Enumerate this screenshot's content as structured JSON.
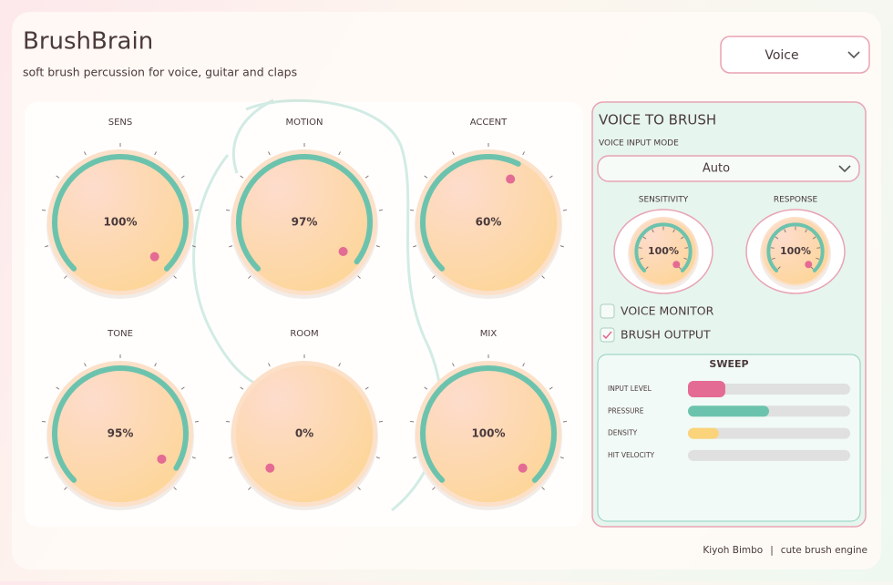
{
  "header": {
    "title": "BrushBrain",
    "subtitle": "soft brush percussion for voice, guitar and claps",
    "preset": "Voice"
  },
  "knobs": [
    {
      "name": "SENS",
      "value": 100,
      "label": "100%"
    },
    {
      "name": "MOTION",
      "value": 97,
      "label": "97%"
    },
    {
      "name": "ACCENT",
      "value": 60,
      "label": "60%"
    },
    {
      "name": "TONE",
      "value": 95,
      "label": "95%"
    },
    {
      "name": "ROOM",
      "value": 0,
      "label": "0%"
    },
    {
      "name": "MIX",
      "value": 100,
      "label": "100%"
    }
  ],
  "panel": {
    "title": "VOICE TO BRUSH",
    "mode_label": "VOICE INPUT MODE",
    "mode": "Auto",
    "knobs": [
      {
        "name": "SENSITIVITY",
        "value": 100,
        "label": "100%"
      },
      {
        "name": "RESPONSE",
        "value": 100,
        "label": "100%"
      }
    ],
    "checkboxes": [
      {
        "label": "VOICE MONITOR",
        "checked": false
      },
      {
        "label": "BRUSH OUTPUT",
        "checked": true
      }
    ],
    "sweep": {
      "title": "SWEEP",
      "meters": [
        {
          "label": "INPUT LEVEL",
          "value": 23,
          "color": "#e46b93"
        },
        {
          "label": "PRESSURE",
          "value": 50,
          "color": "#6cc3ad"
        },
        {
          "label": "DENSITY",
          "value": 19,
          "color": "#fbd37a"
        },
        {
          "label": "HIT VELOCITY",
          "value": 0,
          "color": "#6cc3ad"
        }
      ]
    }
  },
  "footer": {
    "credit": "Kiyoh Bimbo",
    "separator": "|",
    "tagline": "cute brush engine"
  }
}
